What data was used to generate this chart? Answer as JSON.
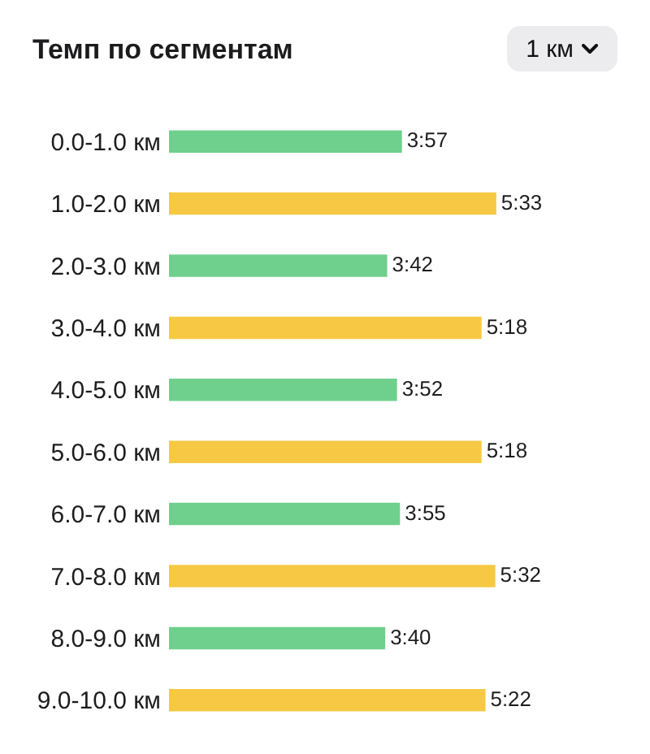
{
  "chart_data": {
    "type": "bar",
    "orientation": "horizontal",
    "title": "Темп по сегментам",
    "annotations": [
      "1 км"
    ],
    "categories": [
      "0.0-1.0 км",
      "1.0-2.0 км",
      "2.0-3.0 км",
      "3.0-4.0 км",
      "4.0-5.0 км",
      "5.0-6.0 км",
      "6.0-7.0 км",
      "7.0-8.0 км",
      "8.0-9.0 км",
      "9.0-10.0 км"
    ],
    "values": [
      237,
      333,
      222,
      318,
      232,
      318,
      235,
      332,
      220,
      322
    ],
    "value_labels": [
      "3:57",
      "5:33",
      "3:42",
      "5:18",
      "3:52",
      "5:18",
      "3:55",
      "5:32",
      "3:40",
      "5:22"
    ],
    "colors": [
      "#6fcf8c",
      "#f6c844",
      "#6fcf8c",
      "#f6c844",
      "#6fcf8c",
      "#f6c844",
      "#6fcf8c",
      "#f6c844",
      "#6fcf8c",
      "#f6c844"
    ]
  }
}
